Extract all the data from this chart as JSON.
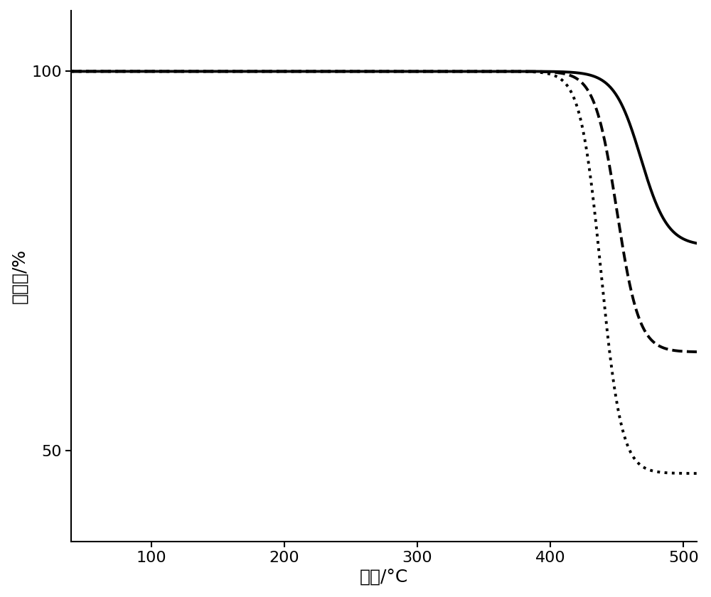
{
  "title": "",
  "xlabel": "温度/°C",
  "ylabel": "质量比/%",
  "xlim": [
    40,
    510
  ],
  "ylim": [
    38,
    108
  ],
  "xticks": [
    100,
    200,
    300,
    400,
    500
  ],
  "yticks": [
    50,
    100
  ],
  "background_color": "#ffffff",
  "line_color": "#000000",
  "curves_params": [
    {
      "midpoint": 468,
      "end_value": 77,
      "steepness": 0.1,
      "style": "solid",
      "lw": 2.8
    },
    {
      "midpoint": 450,
      "end_value": 63,
      "steepness": 0.12,
      "style": "dashed",
      "lw": 2.8
    },
    {
      "midpoint": 438,
      "end_value": 47,
      "steepness": 0.13,
      "style": "dotted",
      "lw": 2.8
    }
  ],
  "xlabel_fontsize": 18,
  "ylabel_fontsize": 18,
  "tick_fontsize": 16,
  "figure_width": 10.0,
  "figure_height": 8.4,
  "dpi": 100
}
